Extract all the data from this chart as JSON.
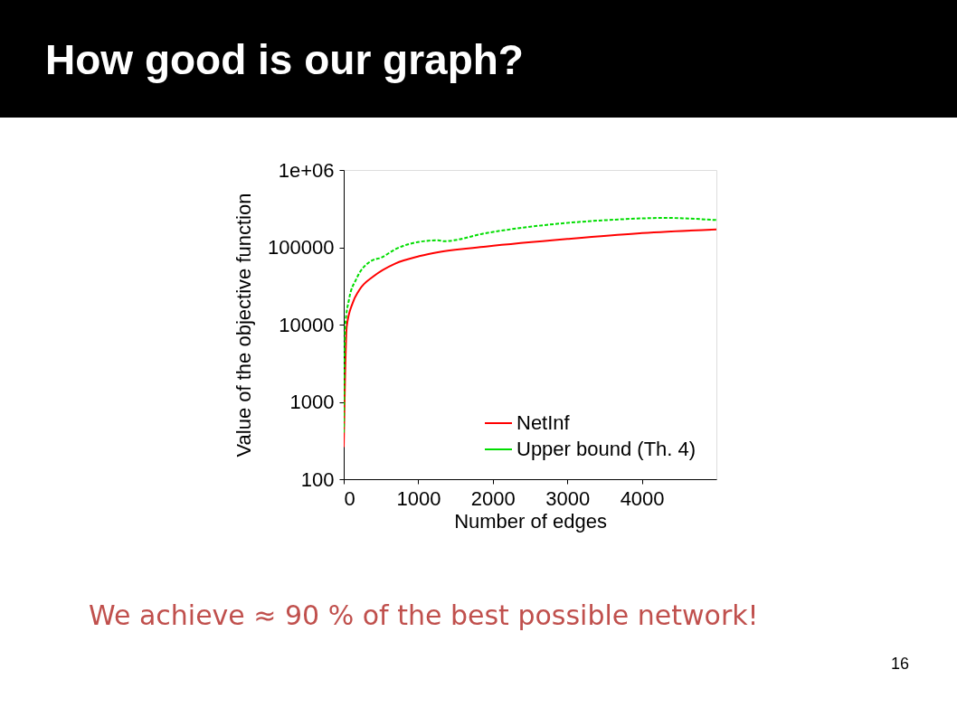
{
  "chart_data": {
    "type": "line",
    "title": "How good is our graph?",
    "xlabel": "Number of edges",
    "ylabel": "Value of the objective function",
    "log": "y",
    "xlim": [
      0,
      5000
    ],
    "xticks": [
      0,
      1000,
      2000,
      3000,
      4000
    ],
    "ylim": [
      100,
      1000000
    ],
    "yticks": [
      100,
      1000,
      10000,
      100000,
      {
        "value": 1000000,
        "label": "1e+06"
      }
    ],
    "grid": false,
    "legend": "bottom right",
    "marker": "none",
    "annotations": [
      "We achieve ≈ 90 % of the best possible network!",
      "16"
    ],
    "series": [
      {
        "name": "NetInf",
        "color": "#ff0000",
        "line_style": "solid",
        "x": [
          0,
          40,
          120,
          203,
          405,
          689,
          1014,
          1298,
          1906,
          3001,
          3935,
          5000
        ],
        "values": [
          260,
          9400,
          19000,
          27500,
          42500,
          61500,
          76800,
          87400,
          102000,
          128000,
          151000,
          170000
        ]
      },
      {
        "name": "Upper bound (Th. 4)",
        "color": "#00dd00",
        "line_style": "dashed",
        "x": [
          0,
          20,
          70,
          170,
          373,
          495,
          698,
          1022,
          1265,
          1346,
          1915,
          2725,
          3537,
          4348,
          4550,
          5000
        ],
        "values": [
          400,
          9400,
          21000,
          39000,
          67000,
          73000,
          95000,
          118000,
          123000,
          120000,
          153000,
          195000,
          225000,
          240000,
          237000,
          225000
        ]
      }
    ]
  }
}
